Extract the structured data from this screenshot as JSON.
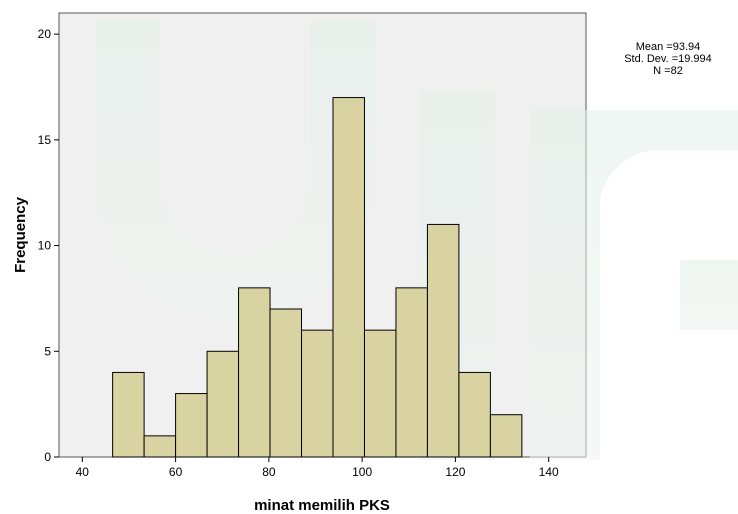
{
  "chart_data": {
    "type": "bar",
    "subtype": "histogram",
    "xlabel": "minat memilih PKS",
    "ylabel": "Frequency",
    "xlim": [
      35,
      148
    ],
    "ylim": [
      0,
      21
    ],
    "xticks": [
      40,
      60,
      80,
      100,
      120,
      140
    ],
    "yticks": [
      0,
      5,
      10,
      15,
      20
    ],
    "bin_width": 6.75,
    "bins": [
      {
        "start": 46.5,
        "end": 53.25,
        "count": 4
      },
      {
        "start": 53.25,
        "end": 60.0,
        "count": 1
      },
      {
        "start": 60.0,
        "end": 66.75,
        "count": 3
      },
      {
        "start": 66.75,
        "end": 73.5,
        "count": 5
      },
      {
        "start": 73.5,
        "end": 80.25,
        "count": 8
      },
      {
        "start": 80.25,
        "end": 87.0,
        "count": 7
      },
      {
        "start": 87.0,
        "end": 93.75,
        "count": 6
      },
      {
        "start": 93.75,
        "end": 100.5,
        "count": 17
      },
      {
        "start": 100.5,
        "end": 107.25,
        "count": 6
      },
      {
        "start": 107.25,
        "end": 114.0,
        "count": 8
      },
      {
        "start": 114.0,
        "end": 120.75,
        "count": 11
      },
      {
        "start": 120.75,
        "end": 127.5,
        "count": 4
      },
      {
        "start": 127.5,
        "end": 134.25,
        "count": 2
      }
    ],
    "bar_color": "#d8d3a0",
    "bar_edge_color": "#000000",
    "plot_background": "#f0f0f0",
    "grid": false,
    "stats": {
      "mean": "Mean =93.94",
      "std": "Std. Dev. =19.994",
      "n": "N =82"
    },
    "stats_placement": "top-right"
  }
}
